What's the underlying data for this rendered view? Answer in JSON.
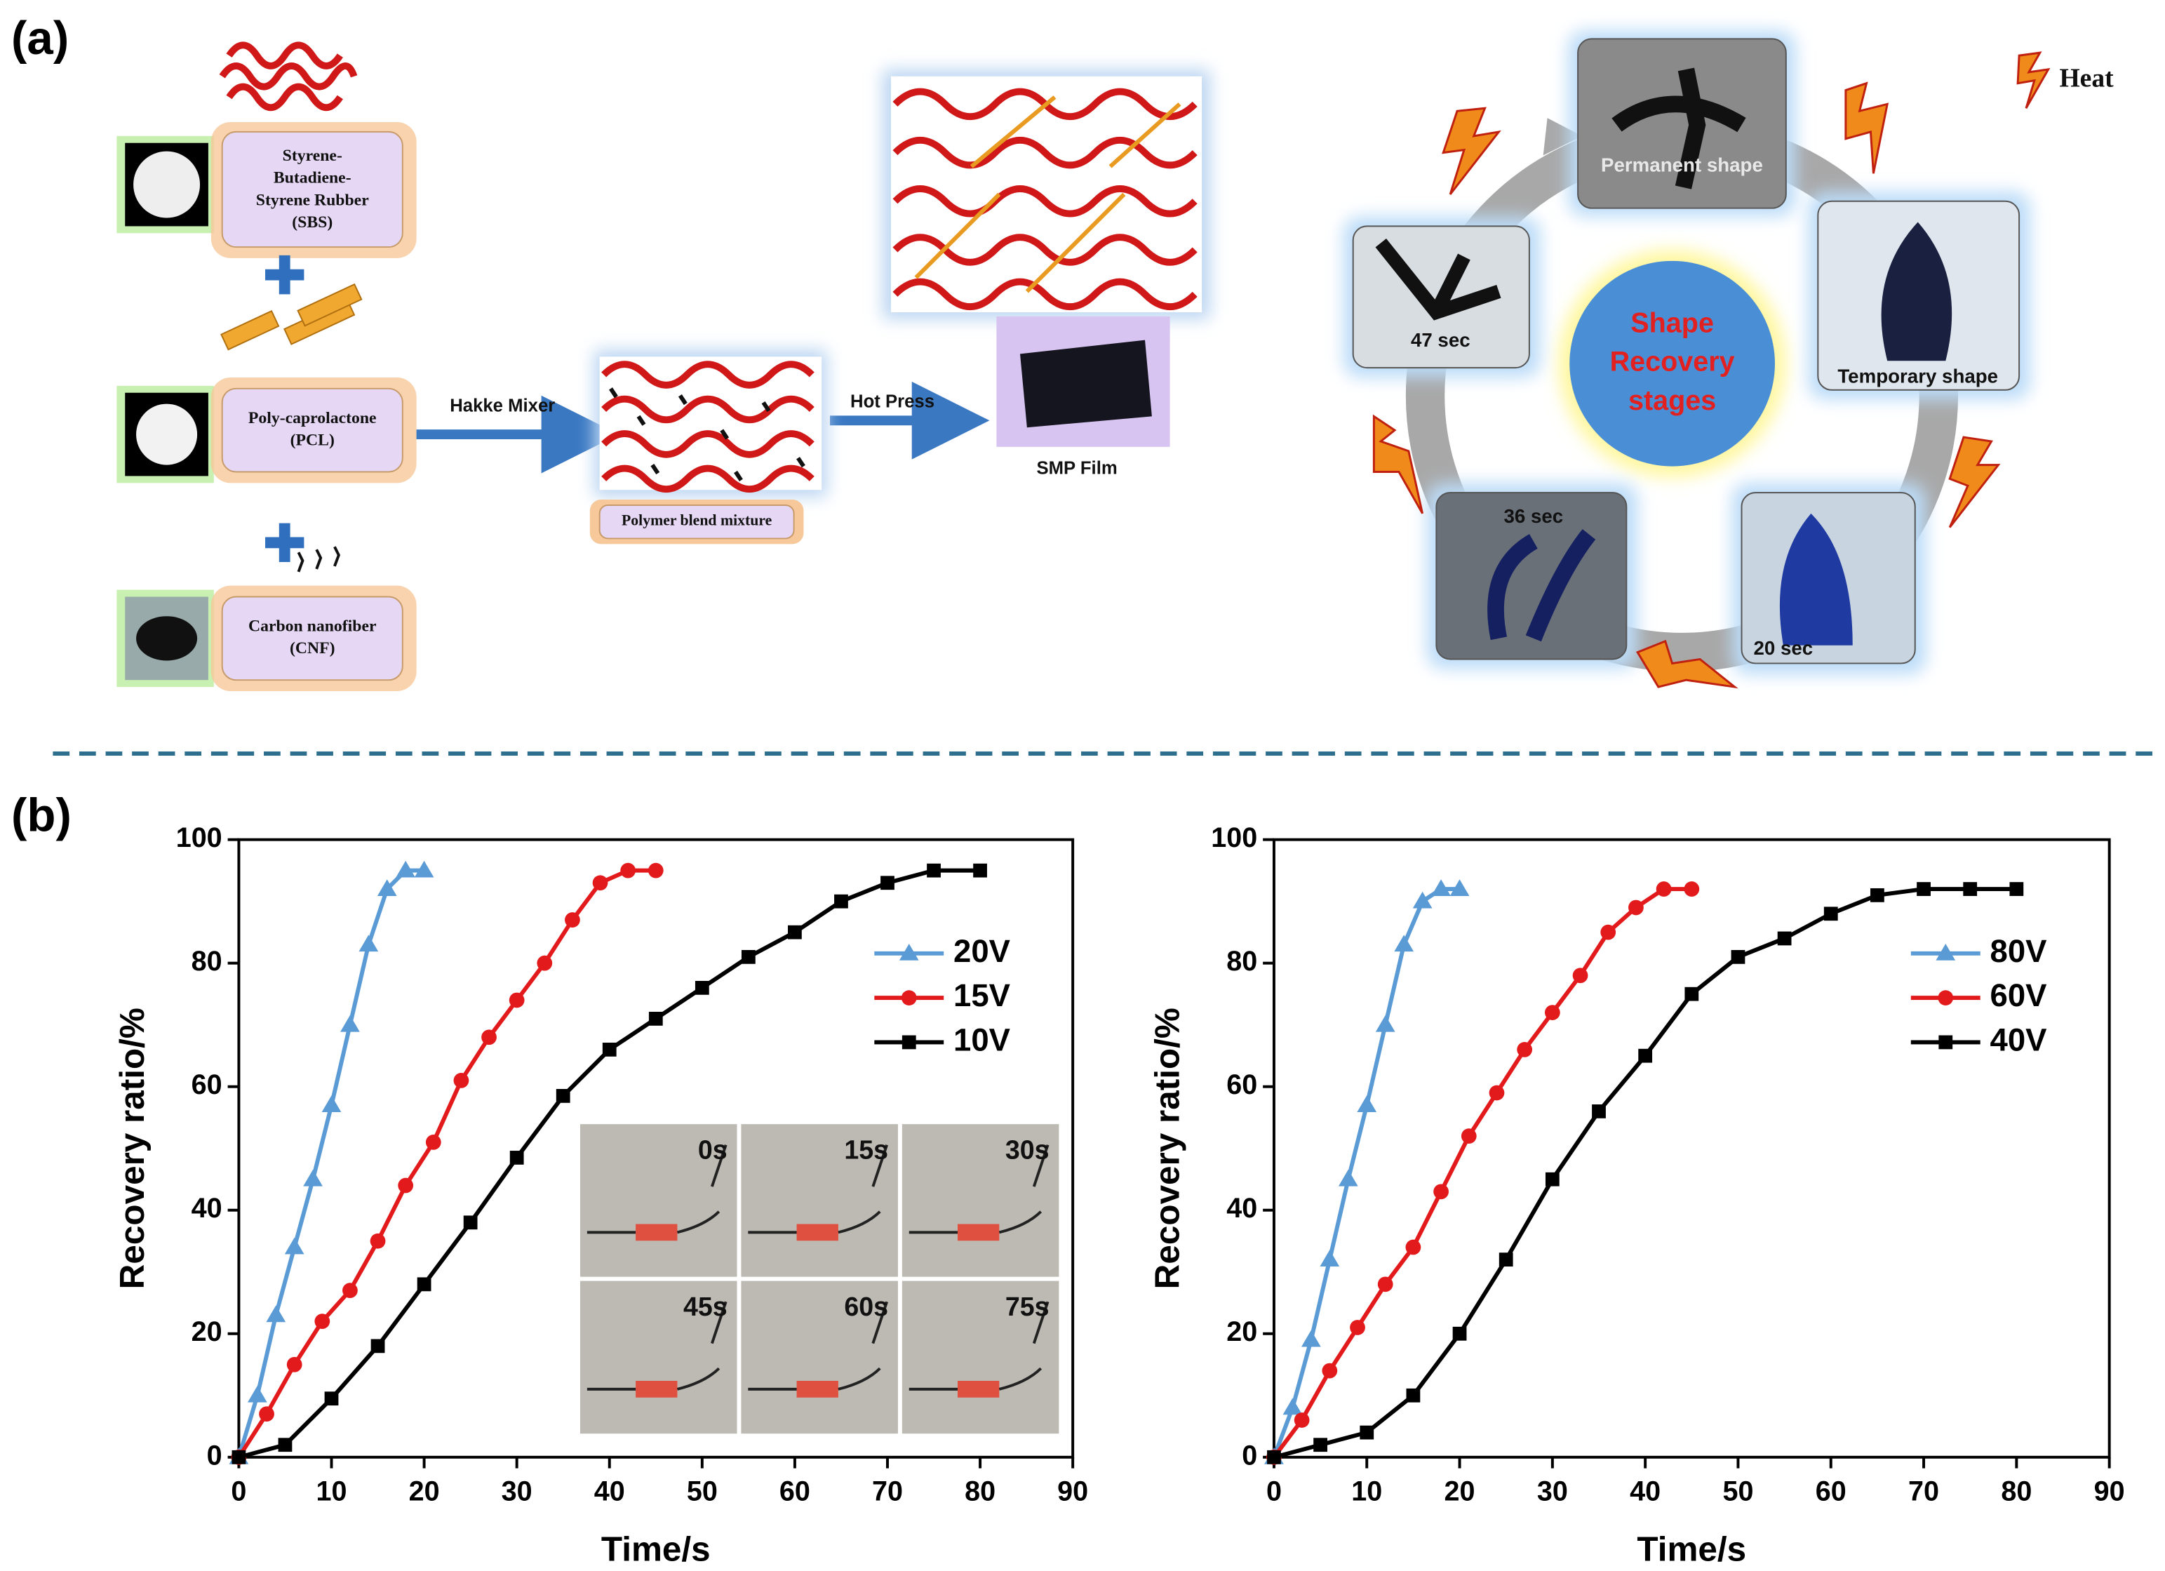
{
  "panel_a": {
    "label": "(a)",
    "materials": [
      {
        "lines": [
          "Styrene-",
          "Butadiene-",
          "Styrene Rubber",
          "(SBS)"
        ]
      },
      {
        "lines": [
          "Poly-caprolactone",
          "(PCL)"
        ]
      },
      {
        "lines": [
          "Carbon nanofiber",
          "(CNF)"
        ]
      }
    ],
    "mixer": "Hakke Mixer",
    "blend": "Polymer blend mixture",
    "press": "Hot Press",
    "film": "SMP Film",
    "heat": "Heat",
    "cycle": {
      "center": [
        "Shape",
        "Recovery",
        "stages"
      ],
      "stages": [
        "Permanent shape",
        "Temporary shape",
        "20 sec",
        "36 sec",
        "47 sec"
      ]
    }
  },
  "panel_b": {
    "label": "(b)"
  },
  "chart_data": [
    {
      "type": "line",
      "xlabel": "Time/s",
      "ylabel": "Recovery ratio/%",
      "xlim": [
        0,
        90
      ],
      "xticks": [
        0,
        10,
        20,
        30,
        40,
        50,
        60,
        70,
        80,
        90
      ],
      "ylim": [
        0,
        100
      ],
      "yticks": [
        0,
        20,
        40,
        60,
        80,
        100
      ],
      "legend": "upper right",
      "annotations": [
        "0s",
        "15s",
        "30s",
        "45s",
        "60s",
        "75s"
      ],
      "series": [
        {
          "name": "20V",
          "color": "#5b9bd5",
          "marker": "triangle",
          "x": [
            0,
            2,
            4,
            6,
            8,
            10,
            12,
            14,
            16,
            18,
            20
          ],
          "values": [
            0,
            10,
            23,
            34,
            45,
            57,
            70,
            83,
            92,
            95,
            95
          ]
        },
        {
          "name": "15V",
          "color": "#e31a1c",
          "marker": "circle",
          "x": [
            0,
            3,
            6,
            9,
            12,
            15,
            18,
            21,
            24,
            27,
            30,
            33,
            36,
            39,
            42,
            45
          ],
          "values": [
            0,
            7,
            15,
            22,
            27,
            35,
            44,
            51,
            61,
            68,
            74,
            80,
            87,
            93,
            95,
            95
          ]
        },
        {
          "name": "10V",
          "color": "#000000",
          "marker": "square",
          "x": [
            0,
            5,
            10,
            15,
            20,
            25,
            30,
            35,
            40,
            45,
            50,
            55,
            60,
            65,
            70,
            75,
            80
          ],
          "values": [
            0,
            2,
            9.5,
            18,
            28,
            38,
            48.5,
            58.5,
            66,
            71,
            76,
            81,
            85,
            90,
            93,
            95,
            95
          ]
        }
      ]
    },
    {
      "type": "line",
      "xlabel": "Time/s",
      "ylabel": "Recovery ratio/%",
      "xlim": [
        0,
        90
      ],
      "xticks": [
        0,
        10,
        20,
        30,
        40,
        50,
        60,
        70,
        80,
        90
      ],
      "ylim": [
        0,
        100
      ],
      "yticks": [
        0,
        20,
        40,
        60,
        80,
        100
      ],
      "legend": "upper right",
      "series": [
        {
          "name": "80V",
          "color": "#5b9bd5",
          "marker": "triangle",
          "x": [
            0,
            2,
            4,
            6,
            8,
            10,
            12,
            14,
            16,
            18,
            20
          ],
          "values": [
            0,
            8,
            19,
            32,
            45,
            57,
            70,
            83,
            90,
            92,
            92
          ]
        },
        {
          "name": "60V",
          "color": "#e31a1c",
          "marker": "circle",
          "x": [
            0,
            3,
            6,
            9,
            12,
            15,
            18,
            21,
            24,
            27,
            30,
            33,
            36,
            39,
            42,
            45
          ],
          "values": [
            0,
            6,
            14,
            21,
            28,
            34,
            43,
            52,
            59,
            66,
            72,
            78,
            85,
            89,
            92,
            92
          ]
        },
        {
          "name": "40V",
          "color": "#000000",
          "marker": "square",
          "x": [
            0,
            5,
            10,
            15,
            20,
            25,
            30,
            35,
            40,
            45,
            50,
            55,
            60,
            65,
            70,
            75,
            80
          ],
          "values": [
            0,
            2,
            4,
            10,
            20,
            32,
            45,
            56,
            65,
            75,
            81,
            84,
            88,
            91,
            92,
            92,
            92
          ]
        }
      ]
    }
  ]
}
